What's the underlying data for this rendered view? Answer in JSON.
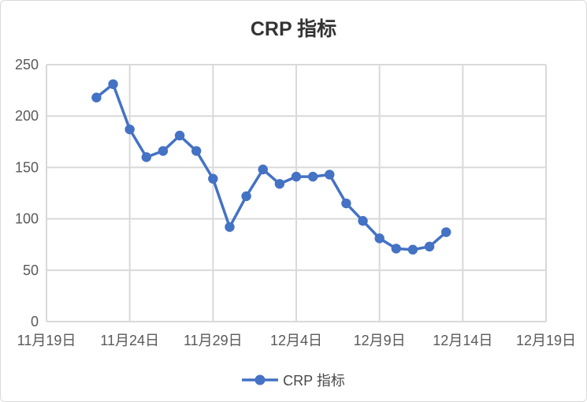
{
  "chart_data": {
    "type": "line",
    "title": "CRP 指标",
    "legend": "CRP 指标",
    "legend_position": "bottom",
    "marker": "circle",
    "grid": true,
    "x": [
      "11月22日",
      "11月23日",
      "11月24日",
      "11月25日",
      "11月26日",
      "11月27日",
      "11月28日",
      "11月29日",
      "11月30日",
      "12月1日",
      "12月2日",
      "12月3日",
      "12月4日",
      "12月5日",
      "12月6日",
      "12月7日",
      "12月8日",
      "12月9日",
      "12月10日",
      "12月11日",
      "12月12日",
      "12月13日"
    ],
    "point_days": [
      3,
      4,
      5,
      6,
      7,
      8,
      9,
      10,
      11,
      12,
      13,
      14,
      15,
      16,
      17,
      18,
      19,
      20,
      21,
      22,
      23,
      24
    ],
    "values": [
      218,
      231,
      187,
      160,
      166,
      181,
      166,
      139,
      92,
      122,
      148,
      134,
      141,
      141,
      143,
      115,
      98,
      81,
      71,
      70,
      73,
      87
    ],
    "x_tick_labels": [
      "11月19日",
      "11月24日",
      "11月29日",
      "12月4日",
      "12月9日",
      "12月14日",
      "12月19日"
    ],
    "x_tick_days": [
      0,
      5,
      10,
      15,
      20,
      25,
      30
    ],
    "x_range_days": [
      0,
      30
    ],
    "y_ticks": [
      0,
      50,
      100,
      150,
      200,
      250
    ],
    "ylim": [
      0,
      250
    ],
    "colors": {
      "line": "#4472C4",
      "grid": "#D9D9D9",
      "tick_label": "#595959",
      "title": "#333333",
      "legend_label": "#494949",
      "card_border": "#D9D9D9",
      "background": "#FFFFFF"
    }
  }
}
